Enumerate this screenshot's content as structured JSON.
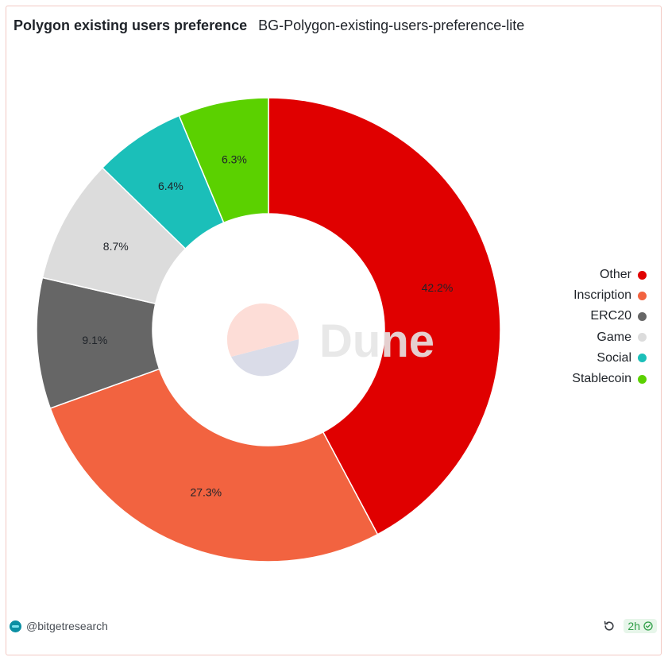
{
  "header": {
    "title": "Polygon existing users preference",
    "subtitle": "BG-Polygon-existing-users-preference-lite"
  },
  "chart_data": {
    "type": "pie",
    "donut": true,
    "categories": [
      "Other",
      "Inscription",
      "ERC20",
      "Game",
      "Social",
      "Stablecoin"
    ],
    "values": [
      42.2,
      27.3,
      9.1,
      8.7,
      6.4,
      6.3
    ],
    "labels": [
      "42.2%",
      "27.3%",
      "9.1%",
      "8.7%",
      "6.4%",
      "6.3%"
    ],
    "colors": [
      "#e00000",
      "#f26340",
      "#666666",
      "#dcdcdc",
      "#1bbfb9",
      "#5bd100"
    ],
    "legend_position": "right"
  },
  "watermark": {
    "text": "Dune"
  },
  "footer": {
    "handle": "@bitgetresearch",
    "refresh_icon": "refresh-icon",
    "age": "2h",
    "status_icon": "check-circle-icon"
  }
}
